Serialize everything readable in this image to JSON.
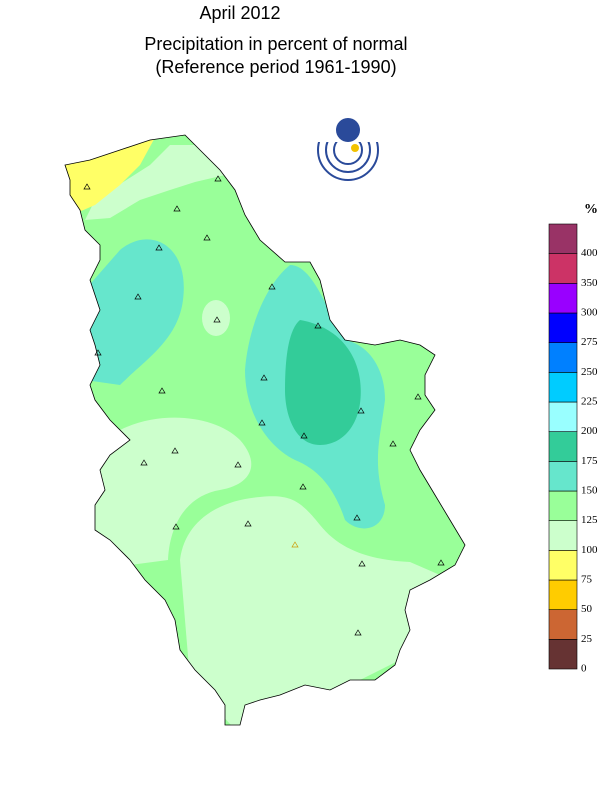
{
  "header": {
    "title": "April 2012",
    "subtitle": "Precipitation in percent of normal",
    "reference": "(Reference period 1961-1990)"
  },
  "legend": {
    "unit": "%",
    "classes": [
      {
        "from": 0,
        "color": "#663333"
      },
      {
        "from": 25,
        "color": "#cc6633"
      },
      {
        "from": 50,
        "color": "#ffcc00"
      },
      {
        "from": 75,
        "color": "#ffff66"
      },
      {
        "from": 100,
        "color": "#ccffcc"
      },
      {
        "from": 125,
        "color": "#99ff99"
      },
      {
        "from": 150,
        "color": "#66e6cc"
      },
      {
        "from": 175,
        "color": "#33cc99"
      },
      {
        "from": 200,
        "color": "#99ffff"
      },
      {
        "from": 225,
        "color": "#00ccff"
      },
      {
        "from": 250,
        "color": "#0080ff"
      },
      {
        "from": 275,
        "color": "#0000ff"
      },
      {
        "from": 300,
        "color": "#9900ff"
      },
      {
        "from": 350,
        "color": "#cc3366"
      },
      {
        "from": 400,
        "color": "#993366"
      }
    ]
  }
}
